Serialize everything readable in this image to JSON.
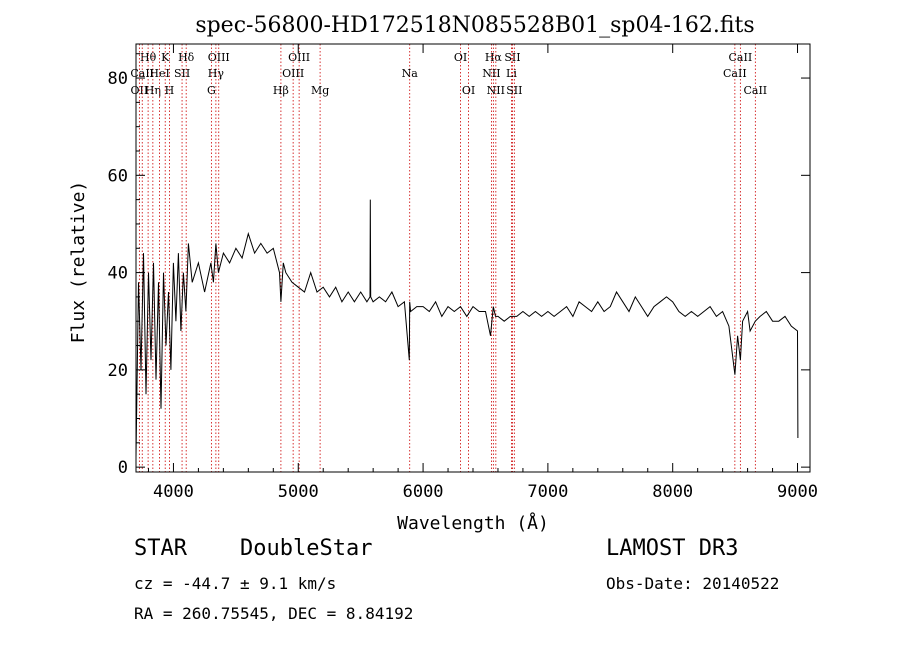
{
  "chart_data": {
    "type": "line",
    "title": "spec-56800-HD172518N085528B01_sp04-162.fits",
    "xlabel": "Wavelength (Å)",
    "ylabel": "Flux (relative)",
    "xlim": [
      3700,
      9100
    ],
    "ylim": [
      -1,
      87
    ],
    "xticks": [
      4000,
      5000,
      6000,
      7000,
      8000,
      9000
    ],
    "yticks": [
      0,
      20,
      40,
      60,
      80
    ],
    "series": [
      {
        "name": "flux",
        "x": [
          3700,
          3720,
          3740,
          3760,
          3780,
          3800,
          3820,
          3840,
          3860,
          3880,
          3900,
          3920,
          3940,
          3960,
          3980,
          4000,
          4020,
          4040,
          4060,
          4080,
          4100,
          4120,
          4150,
          4200,
          4250,
          4300,
          4320,
          4340,
          4360,
          4400,
          4450,
          4500,
          4550,
          4600,
          4650,
          4700,
          4750,
          4800,
          4850,
          4861,
          4880,
          4900,
          4950,
          5000,
          5050,
          5100,
          5150,
          5200,
          5250,
          5300,
          5350,
          5400,
          5450,
          5500,
          5550,
          5575,
          5577,
          5580,
          5600,
          5650,
          5700,
          5750,
          5800,
          5850,
          5890,
          5893,
          5900,
          5950,
          6000,
          6050,
          6100,
          6150,
          6200,
          6250,
          6300,
          6350,
          6400,
          6450,
          6500,
          6540,
          6563,
          6580,
          6600,
          6650,
          6700,
          6750,
          6800,
          6850,
          6900,
          6950,
          7000,
          7050,
          7100,
          7150,
          7200,
          7250,
          7300,
          7350,
          7400,
          7450,
          7500,
          7550,
          7600,
          7650,
          7700,
          7750,
          7800,
          7850,
          7900,
          7950,
          8000,
          8050,
          8100,
          8150,
          8200,
          8250,
          8300,
          8350,
          8400,
          8450,
          8498,
          8520,
          8542,
          8560,
          8600,
          8620,
          8662,
          8700,
          8750,
          8800,
          8850,
          8900,
          8950,
          9000,
          9003
        ],
        "values": [
          2,
          38,
          20,
          44,
          15,
          40,
          22,
          42,
          18,
          38,
          12,
          40,
          25,
          36,
          20,
          42,
          30,
          44,
          28,
          40,
          32,
          46,
          38,
          42,
          36,
          42,
          38,
          46,
          40,
          44,
          42,
          45,
          43,
          48,
          44,
          46,
          44,
          45,
          40,
          34,
          42,
          40,
          38,
          37,
          36,
          40,
          36,
          37,
          35,
          37,
          34,
          36,
          34,
          36,
          34,
          35,
          55,
          35,
          34,
          35,
          34,
          36,
          33,
          34,
          22,
          34,
          32,
          33,
          33,
          32,
          34,
          31,
          33,
          32,
          33,
          31,
          33,
          32,
          32,
          27,
          33,
          31,
          31,
          30,
          31,
          31,
          32,
          31,
          32,
          31,
          32,
          31,
          32,
          33,
          31,
          34,
          33,
          32,
          34,
          32,
          33,
          36,
          34,
          32,
          35,
          33,
          31,
          33,
          34,
          35,
          34,
          32,
          31,
          32,
          31,
          32,
          33,
          31,
          32,
          29,
          19,
          27,
          22,
          30,
          32,
          28,
          30,
          31,
          32,
          30,
          30,
          31,
          29,
          28,
          6
        ]
      }
    ],
    "lines": [
      {
        "label": "OII",
        "x": 3727,
        "row": 3
      },
      {
        "label": "Hθ",
        "x": 3797,
        "row": 1
      },
      {
        "label": "Hη",
        "x": 3835,
        "row": 3
      },
      {
        "label": "CaII",
        "x": 3750,
        "row": 2
      },
      {
        "label": "HeI",
        "x": 3889,
        "row": 2
      },
      {
        "label": "K",
        "x": 3934,
        "row": 1
      },
      {
        "label": "H",
        "x": 3968,
        "row": 3
      },
      {
        "label": "SII",
        "x": 4069,
        "row": 2
      },
      {
        "label": "Hδ",
        "x": 4102,
        "row": 1
      },
      {
        "label": "OIII",
        "x": 4363,
        "row": 1
      },
      {
        "label": "Hγ",
        "x": 4340,
        "row": 2
      },
      {
        "label": "G",
        "x": 4304,
        "row": 3
      },
      {
        "label": "Hβ",
        "x": 4861,
        "row": 3
      },
      {
        "label": "OIII",
        "x": 5007,
        "row": 1
      },
      {
        "label": "OIII",
        "x": 4959,
        "row": 2
      },
      {
        "label": "Mg",
        "x": 5175,
        "row": 3
      },
      {
        "label": "Na",
        "x": 5893,
        "row": 2
      },
      {
        "label": "OI",
        "x": 6300,
        "row": 1
      },
      {
        "label": "OI",
        "x": 6364,
        "row": 3
      },
      {
        "label": "Hα",
        "x": 6563,
        "row": 1
      },
      {
        "label": "NII",
        "x": 6548,
        "row": 2
      },
      {
        "label": "NII",
        "x": 6583,
        "row": 3
      },
      {
        "label": "SII",
        "x": 6716,
        "row": 1
      },
      {
        "label": "Li",
        "x": 6708,
        "row": 2
      },
      {
        "label": "SII",
        "x": 6731,
        "row": 3
      },
      {
        "label": "CaII",
        "x": 8542,
        "row": 1
      },
      {
        "label": "CaII",
        "x": 8498,
        "row": 2
      },
      {
        "label": "CaII",
        "x": 8662,
        "row": 3
      }
    ]
  },
  "info": {
    "class": "STAR",
    "subclass": "DoubleStar",
    "survey": "LAMOST DR3",
    "cz": "cz = -44.7 ± 9.1 km/s",
    "obs_date": "Obs-Date: 20140522",
    "radec": "RA = 260.75545, DEC =   8.84192"
  },
  "colors": {
    "line_marker": "#cc0000",
    "spectrum": "#000000"
  }
}
